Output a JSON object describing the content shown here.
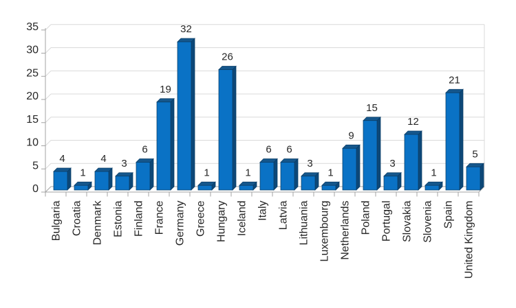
{
  "chart_data": {
    "type": "bar",
    "style": "3d-column",
    "title": "",
    "xlabel": "",
    "ylabel": "",
    "categories": [
      "Bulgaria",
      "Croatia",
      "Denmark",
      "Estonia",
      "Finland",
      "France",
      "Germany",
      "Greece",
      "Hungary",
      "Iceland",
      "Italy",
      "Latvia",
      "Lithuania",
      "Luxembourg",
      "Netherlands",
      "Poland",
      "Portugal",
      "Slovakia",
      "Slovenia",
      "Spain",
      "United Kingdom"
    ],
    "values": [
      4,
      1,
      4,
      3,
      6,
      19,
      32,
      1,
      26,
      1,
      6,
      6,
      3,
      1,
      9,
      15,
      3,
      12,
      1,
      21,
      5
    ],
    "data_labels": true,
    "ylim": [
      0,
      35
    ],
    "yticks": [
      0,
      5,
      10,
      15,
      20,
      25,
      30,
      35
    ],
    "legend": "none",
    "grid": "on",
    "category_label_rotation": -90,
    "colors": {
      "bar_front": "#0A72C5",
      "bar_top": "#15578C",
      "bar_side": "#0D4878",
      "bar_outline": "#0A3C66",
      "gridline": "#D9D9D9",
      "axis": "#A3A3A3",
      "text": "#262626",
      "background": "#FFFFFF"
    }
  }
}
